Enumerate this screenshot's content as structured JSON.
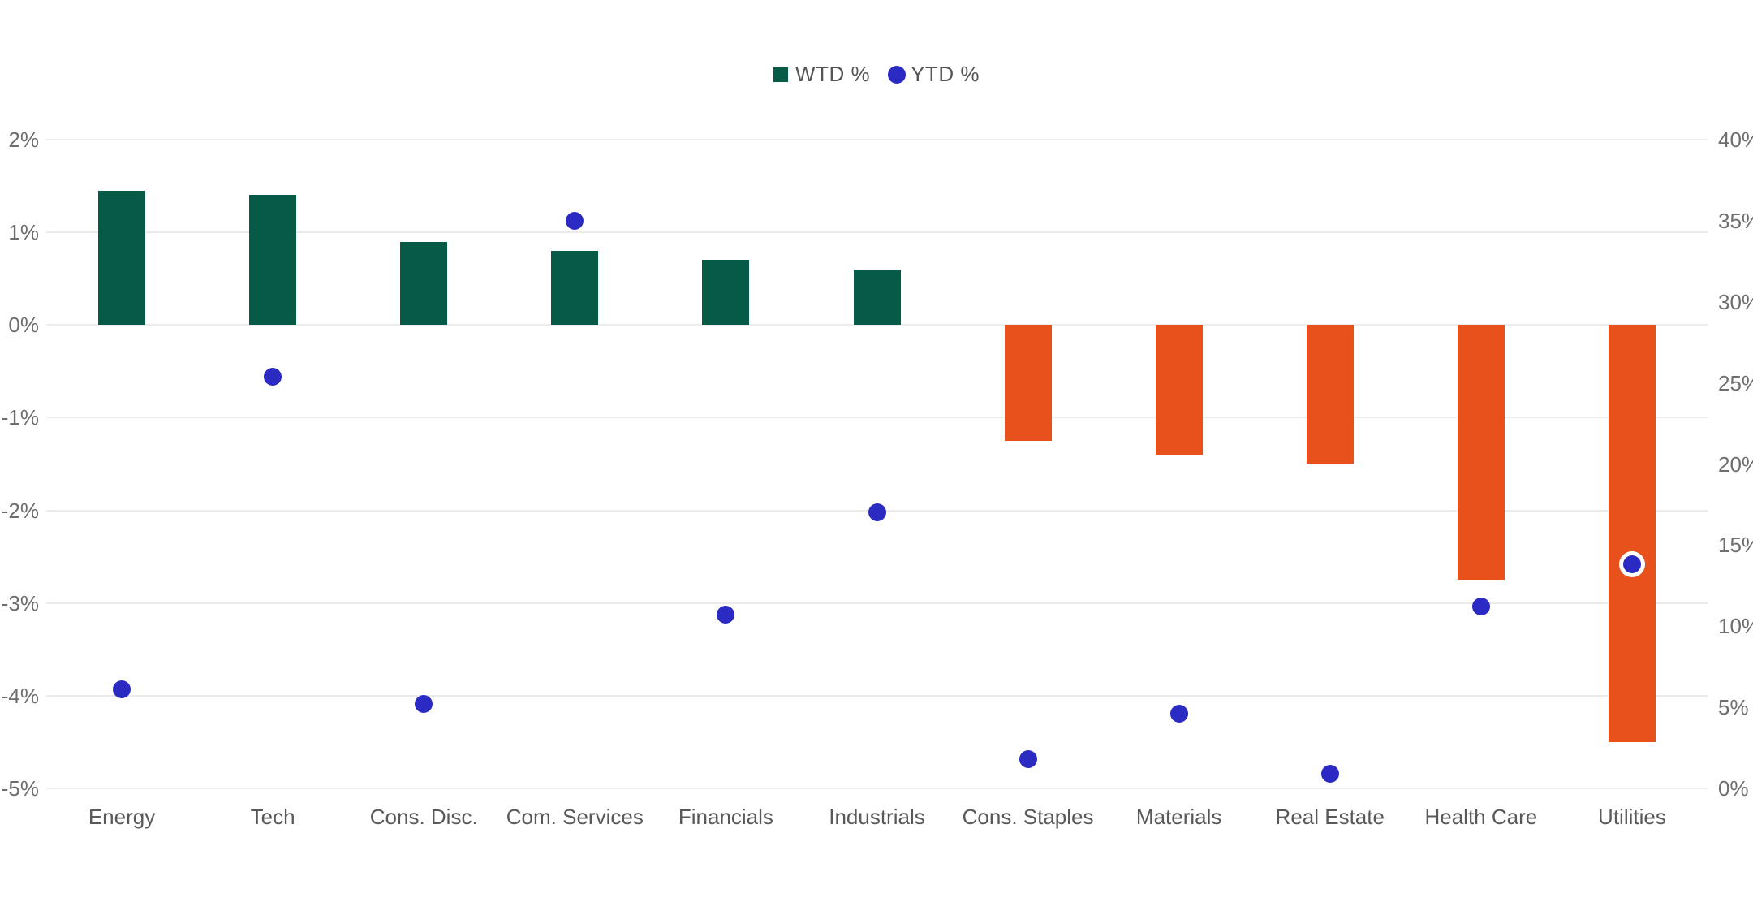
{
  "chart_data": {
    "type": "combo-bar-scatter",
    "title": "",
    "categories": [
      "Energy",
      "Tech",
      "Cons. Disc.",
      "Com. Services",
      "Financials",
      "Industrials",
      "Cons. Staples",
      "Materials",
      "Real Estate",
      "Health Care",
      "Utilities"
    ],
    "series": [
      {
        "name": "WTD %",
        "type": "bar",
        "axis": "left",
        "values": [
          1.45,
          1.4,
          0.9,
          0.8,
          0.7,
          0.6,
          -1.25,
          -1.4,
          -1.5,
          -2.75,
          -4.5
        ],
        "color_positive": "#055B45",
        "color_negative": "#E8511C"
      },
      {
        "name": "YTD %",
        "type": "scatter",
        "axis": "right",
        "values": [
          6.1,
          25.4,
          5.2,
          35.0,
          10.7,
          17.0,
          1.8,
          4.6,
          0.9,
          11.2,
          13.8
        ],
        "color": "#2B2BC4"
      }
    ],
    "left_axis": {
      "min": -5,
      "max": 2,
      "ticks": [
        {
          "label": "2%",
          "value": 2
        },
        {
          "label": "1%",
          "value": 1
        },
        {
          "label": "0%",
          "value": 0
        },
        {
          "label": "-1%",
          "value": -1
        },
        {
          "label": "-2%",
          "value": -2
        },
        {
          "label": "-3%",
          "value": -3
        },
        {
          "label": "-4%",
          "value": -4
        },
        {
          "label": "-5%",
          "value": -5
        }
      ]
    },
    "right_axis": {
      "min": 0,
      "max": 40,
      "ticks": [
        {
          "label": "40%",
          "value": 40
        },
        {
          "label": "35%",
          "value": 35
        },
        {
          "label": "30%",
          "value": 30
        },
        {
          "label": "25%",
          "value": 25
        },
        {
          "label": "20%",
          "value": 20
        },
        {
          "label": "15%",
          "value": 15
        },
        {
          "label": "10%",
          "value": 10
        },
        {
          "label": "5%",
          "value": 5
        },
        {
          "label": "0%",
          "value": 0
        }
      ]
    },
    "grid": true,
    "legend_position": "top-center",
    "legend": [
      {
        "label": "WTD %",
        "marker": "square",
        "color": "#055B45"
      },
      {
        "label": "YTD %",
        "marker": "circle",
        "color": "#2B2BC4"
      }
    ],
    "background": "#FFFFFF",
    "gridline_color": "#EBEBEB",
    "tick_label_color": "#6E6E6E",
    "category_label_color": "#595959",
    "highlight": {
      "note": "Utilities YTD dot drawn with white ring because it overlaps the negative bar"
    }
  }
}
